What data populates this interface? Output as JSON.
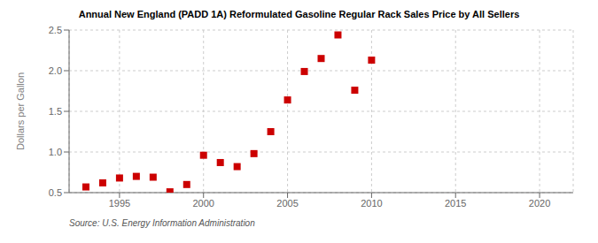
{
  "chart_data": {
    "type": "scatter",
    "title": "Annual New England (PADD 1A) Reformulated Gasoline Regular Rack Sales Price by All Sellers",
    "y_label": "Dollars per Gallon",
    "annotations": [
      "Source: U.S. Energy Information Administration"
    ],
    "x": [
      1993,
      1994,
      1995,
      1996,
      1997,
      1998,
      1999,
      2000,
      2001,
      2002,
      2003,
      2004,
      2005,
      2006,
      2007,
      2008,
      2009,
      2010
    ],
    "values": [
      0.57,
      0.62,
      0.68,
      0.7,
      0.69,
      0.51,
      0.6,
      0.96,
      0.87,
      0.82,
      0.98,
      1.25,
      1.64,
      1.99,
      2.15,
      2.44,
      1.76,
      2.13
    ],
    "color": "#cc0000",
    "marker": "square",
    "xlim": [
      1992,
      2022
    ],
    "xticks": [
      1995,
      2000,
      2005,
      2010,
      2015,
      2020
    ],
    "ylim": [
      0.5,
      2.5
    ],
    "yticks": [
      0.5,
      {
        "value": 1.0,
        "label": "1.0"
      },
      1.5,
      {
        "value": 2.0,
        "label": "2.0"
      },
      2.5
    ],
    "grid": true
  }
}
